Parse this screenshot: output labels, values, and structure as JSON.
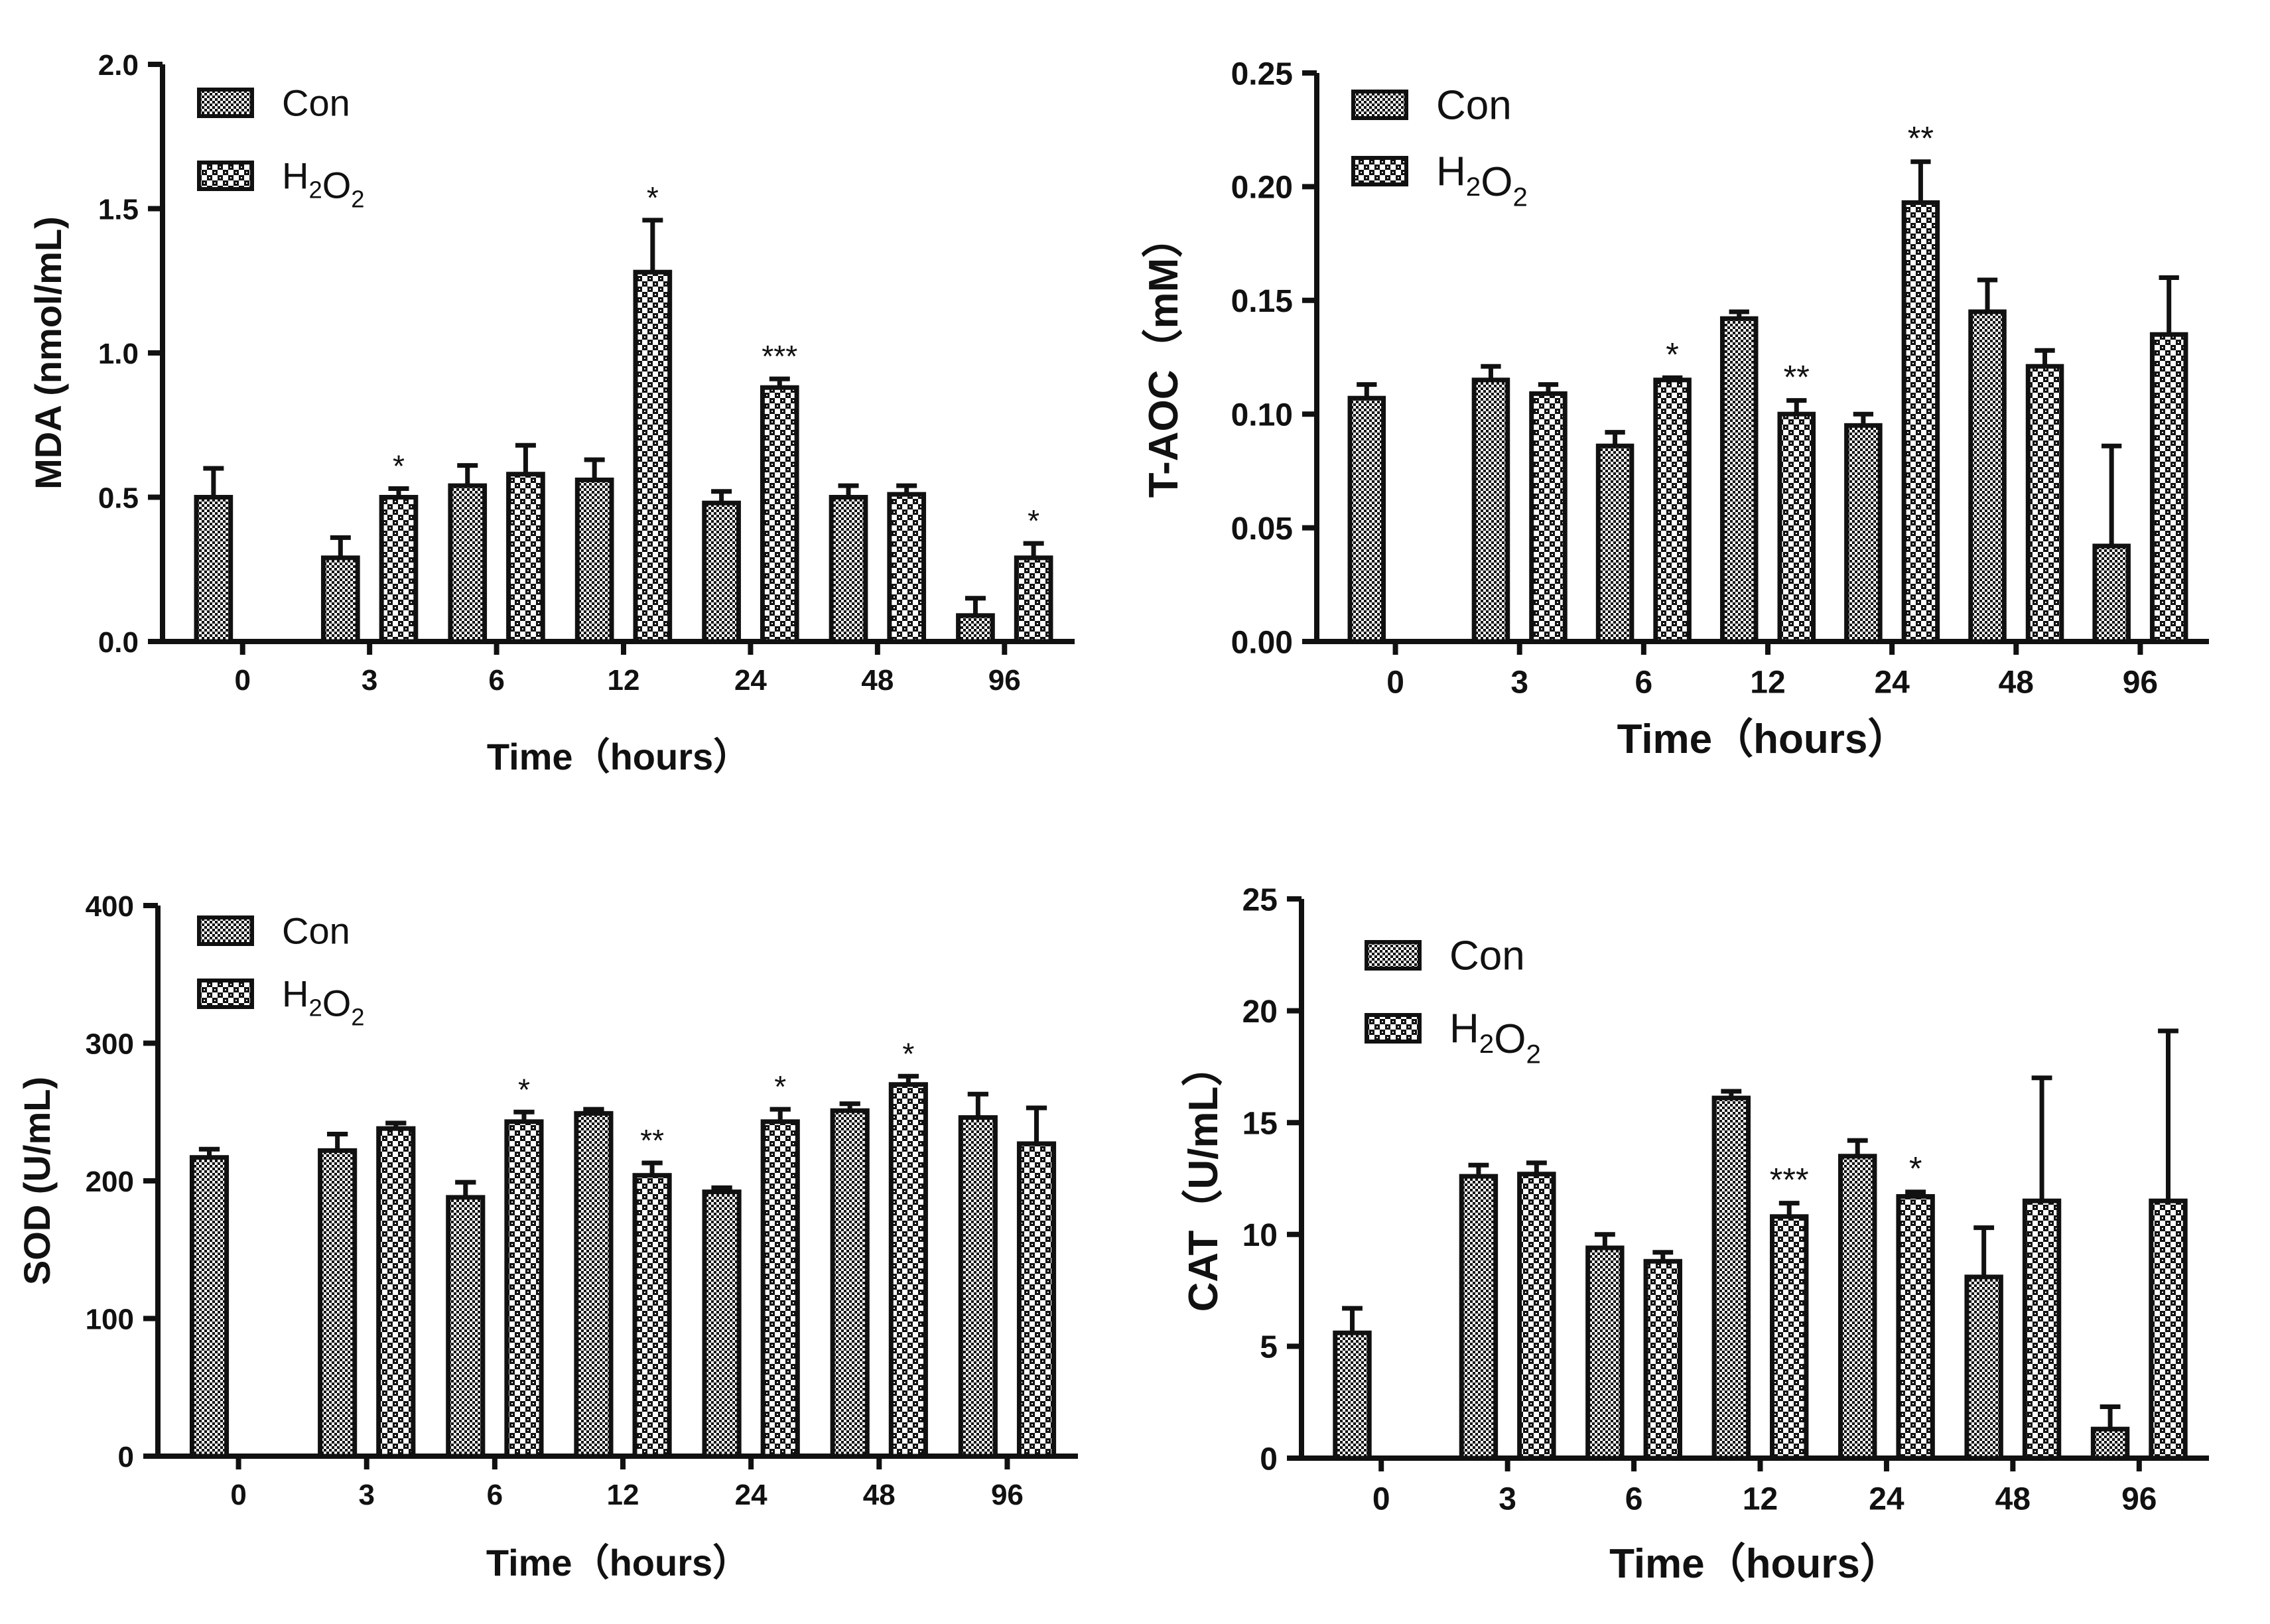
{
  "chart_data": [
    {
      "id": "mda",
      "type": "bar",
      "ylabel": "MDA (nmol/mL)",
      "xlabel": "Time（hours）",
      "categories": [
        "0",
        "3",
        "6",
        "12",
        "24",
        "48",
        "96"
      ],
      "ylim": [
        0,
        2.0
      ],
      "yticks": [
        "0.0",
        "0.5",
        "1.0",
        "1.5",
        "2.0"
      ],
      "legend_position": "top-left",
      "series": [
        {
          "name": "Con",
          "values": [
            0.5,
            0.29,
            0.54,
            0.56,
            0.48,
            0.5,
            0.09
          ],
          "errors": [
            0.1,
            0.07,
            0.07,
            0.07,
            0.04,
            0.04,
            0.06
          ]
        },
        {
          "name": "H2O2",
          "values": [
            null,
            0.5,
            0.58,
            1.28,
            0.88,
            0.51,
            0.29
          ],
          "errors": [
            null,
            0.03,
            0.1,
            0.18,
            0.03,
            0.03,
            0.05
          ]
        }
      ],
      "significance": [
        {
          "category": "3",
          "series": 1,
          "label": "*"
        },
        {
          "category": "12",
          "series": 1,
          "label": "*"
        },
        {
          "category": "24",
          "series": 1,
          "label": "***"
        },
        {
          "category": "96",
          "series": 1,
          "label": "*"
        }
      ]
    },
    {
      "id": "taoc",
      "type": "bar",
      "ylabel": "T-AOC（mM）",
      "xlabel": "Time（hours）",
      "categories": [
        "0",
        "3",
        "6",
        "12",
        "24",
        "48",
        "96"
      ],
      "ylim": [
        0,
        0.25
      ],
      "yticks": [
        "0.00",
        "0.05",
        "0.10",
        "0.15",
        "0.20",
        "0.25"
      ],
      "legend_position": "top-left",
      "series": [
        {
          "name": "Con",
          "values": [
            0.107,
            0.115,
            0.086,
            0.142,
            0.095,
            0.145,
            0.042
          ],
          "errors": [
            0.006,
            0.006,
            0.006,
            0.003,
            0.005,
            0.014,
            0.044
          ]
        },
        {
          "name": "H2O2",
          "values": [
            null,
            0.109,
            0.115,
            0.1,
            0.193,
            0.121,
            0.135
          ],
          "errors": [
            null,
            0.004,
            0.001,
            0.006,
            0.018,
            0.007,
            0.025
          ]
        }
      ],
      "significance": [
        {
          "category": "6",
          "series": 1,
          "label": "*"
        },
        {
          "category": "12",
          "series": 1,
          "label": "**"
        },
        {
          "category": "24",
          "series": 1,
          "label": "**"
        }
      ]
    },
    {
      "id": "sod",
      "type": "bar",
      "ylabel": "SOD (U/mL)",
      "xlabel": "Time（hours）",
      "categories": [
        "0",
        "3",
        "6",
        "12",
        "24",
        "48",
        "96"
      ],
      "ylim": [
        0,
        400
      ],
      "yticks": [
        "0",
        "100",
        "200",
        "300",
        "400"
      ],
      "legend_position": "top-left",
      "series": [
        {
          "name": "Con",
          "values": [
            217,
            222,
            188,
            249,
            192,
            251,
            246
          ],
          "errors": [
            6,
            12,
            11,
            3,
            3,
            5,
            17
          ]
        },
        {
          "name": "H2O2",
          "values": [
            null,
            238,
            243,
            204,
            243,
            270,
            227
          ],
          "errors": [
            null,
            4,
            7,
            9,
            9,
            6,
            26
          ]
        }
      ],
      "significance": [
        {
          "category": "6",
          "series": 1,
          "label": "*"
        },
        {
          "category": "12",
          "series": 1,
          "label": "**"
        },
        {
          "category": "24",
          "series": 1,
          "label": "*"
        },
        {
          "category": "48",
          "series": 1,
          "label": "*"
        }
      ]
    },
    {
      "id": "cat",
      "type": "bar",
      "ylabel": "CAT（U/mL）",
      "xlabel": "Time（hours）",
      "categories": [
        "0",
        "3",
        "6",
        "12",
        "24",
        "48",
        "96"
      ],
      "ylim": [
        0,
        25
      ],
      "yticks": [
        "0",
        "5",
        "10",
        "15",
        "20",
        "25"
      ],
      "legend_position": "top-left",
      "series": [
        {
          "name": "Con",
          "values": [
            5.6,
            12.6,
            9.4,
            16.1,
            13.5,
            8.1,
            1.3
          ],
          "errors": [
            1.1,
            0.5,
            0.6,
            0.3,
            0.7,
            2.2,
            1.0
          ]
        },
        {
          "name": "H2O2",
          "values": [
            null,
            12.7,
            8.8,
            10.8,
            11.7,
            11.5,
            11.5
          ],
          "errors": [
            null,
            0.5,
            0.4,
            0.6,
            0.2,
            5.5,
            7.6
          ]
        }
      ],
      "significance": [
        {
          "category": "12",
          "series": 1,
          "label": "***"
        },
        {
          "category": "24",
          "series": 1,
          "label": "*"
        }
      ]
    }
  ],
  "legend": {
    "con_label": "Con",
    "h2o2_main": "H",
    "h2o2_sub1": "2",
    "h2o2_mid": "O",
    "h2o2_sub2": "2"
  }
}
